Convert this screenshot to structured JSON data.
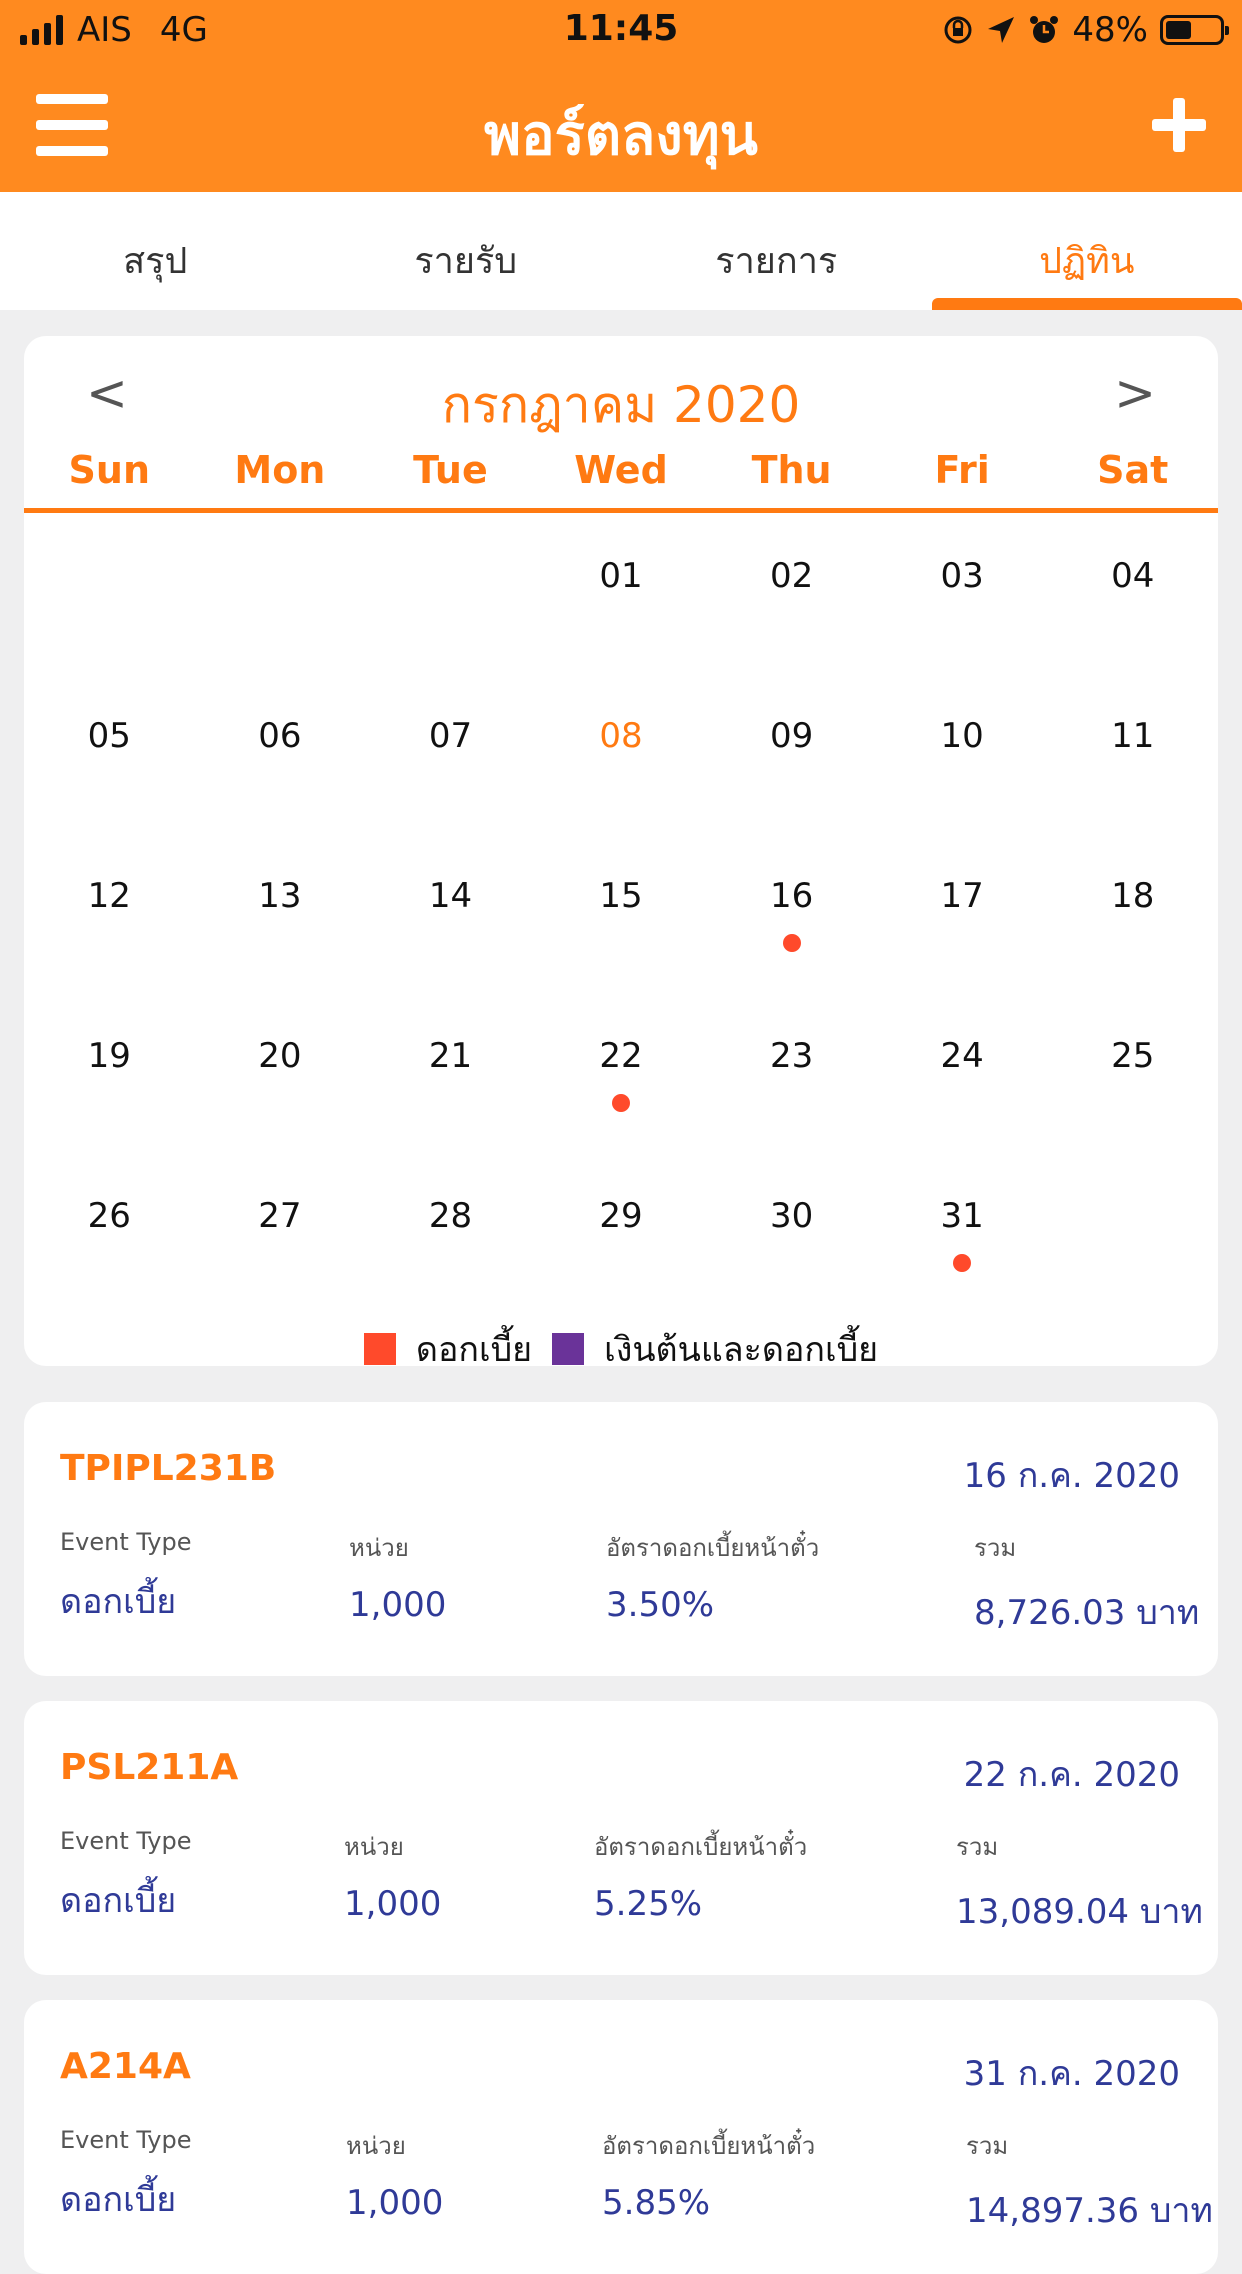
{
  "status_bar": {
    "carrier": "AIS",
    "network": "4G",
    "time": "11:45",
    "battery_percent": "48%",
    "battery_level": 0.48,
    "icons": [
      "signal-icon",
      "rotation-lock-icon",
      "location-icon",
      "alarm-icon",
      "battery-icon"
    ]
  },
  "header": {
    "title": "พอร์ตลงทุน",
    "menu_icon": "hamburger-icon",
    "add_icon": "plus-icon"
  },
  "tabs": [
    {
      "label": "สรุป",
      "active": false
    },
    {
      "label": "รายรับ",
      "active": false
    },
    {
      "label": "รายการ",
      "active": false
    },
    {
      "label": "ปฏิทิน",
      "active": true
    }
  ],
  "calendar": {
    "prev_label": "<",
    "next_label": ">",
    "month_label": "กรกฎาคม 2020",
    "weekdays": [
      "Sun",
      "Mon",
      "Tue",
      "Wed",
      "Thu",
      "Fri",
      "Sat"
    ],
    "today": "08",
    "weeks": [
      [
        {
          "d": ""
        },
        {
          "d": ""
        },
        {
          "d": ""
        },
        {
          "d": "01"
        },
        {
          "d": "02"
        },
        {
          "d": "03"
        },
        {
          "d": "04"
        }
      ],
      [
        {
          "d": "05"
        },
        {
          "d": "06"
        },
        {
          "d": "07"
        },
        {
          "d": "08"
        },
        {
          "d": "09"
        },
        {
          "d": "10"
        },
        {
          "d": "11"
        }
      ],
      [
        {
          "d": "12"
        },
        {
          "d": "13"
        },
        {
          "d": "14"
        },
        {
          "d": "15"
        },
        {
          "d": "16",
          "event": true
        },
        {
          "d": "17"
        },
        {
          "d": "18"
        }
      ],
      [
        {
          "d": "19"
        },
        {
          "d": "20"
        },
        {
          "d": "21"
        },
        {
          "d": "22",
          "event": true
        },
        {
          "d": "23"
        },
        {
          "d": "24"
        },
        {
          "d": "25"
        }
      ],
      [
        {
          "d": "26"
        },
        {
          "d": "27"
        },
        {
          "d": "28"
        },
        {
          "d": "29"
        },
        {
          "d": "30"
        },
        {
          "d": "31",
          "event": true
        },
        {
          "d": ""
        }
      ]
    ],
    "legend": [
      {
        "label": "ดอกเบี้ย",
        "color": "#ff4a2b"
      },
      {
        "label": "เงินต้นและดอกเบี้ย",
        "color": "#6a3399"
      }
    ]
  },
  "column_labels": {
    "event_type": "Event Type",
    "units": "หน่วย",
    "coupon_rate": "อัตราดอกเบี้ยหน้าตั๋ว",
    "total": "รวม"
  },
  "events": [
    {
      "code": "TPIPL231B",
      "date": "16 ก.ค. 2020",
      "event_type": "ดอกเบี้ย",
      "units": "1,000",
      "rate": "3.50%",
      "total": "8,726.03 บาท"
    },
    {
      "code": "PSL211A",
      "date": "22 ก.ค. 2020",
      "event_type": "ดอกเบี้ย",
      "units": "1,000",
      "rate": "5.25%",
      "total": "13,089.04 บาท"
    },
    {
      "code": "A214A",
      "date": "31 ก.ค. 2020",
      "event_type": "ดอกเบี้ย",
      "units": "1,000",
      "rate": "5.85%",
      "total": "14,897.36 บาท"
    }
  ],
  "colors": {
    "brand_orange": "#ff8a1f",
    "accent_orange": "#ff7a12",
    "value_blue": "#2f3a97"
  }
}
